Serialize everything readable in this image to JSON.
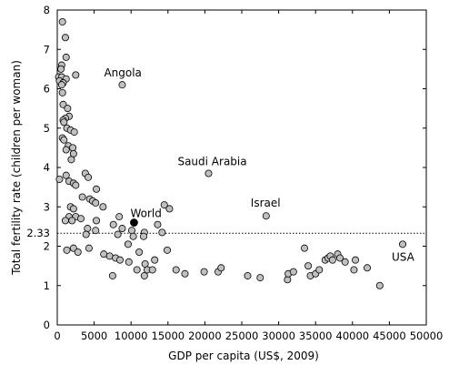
{
  "chart_data": {
    "type": "scatter",
    "xlabel": "GDP per capita (US$, 2009)",
    "ylabel": "Total fertility rate (children per woman)",
    "xlim": [
      0,
      50000
    ],
    "ylim": [
      0,
      8
    ],
    "x_ticks": [
      "0",
      "5000",
      "10000",
      "15000",
      "20000",
      "25000",
      "30000",
      "35000",
      "40000",
      "45000",
      "50000"
    ],
    "y_ticks": [
      "0",
      "1",
      "2",
      "3",
      "4",
      "5",
      "6",
      "7",
      "8"
    ],
    "grid": false,
    "colors": {
      "point": "#c0c0c0",
      "world_point": "#000000",
      "reference_line": "#000000"
    },
    "reference_line": {
      "y": 2.33,
      "label": "2.33",
      "style": "dotted"
    },
    "annotations": [
      {
        "label": "Angola",
        "x": 8800,
        "y": 6.1
      },
      {
        "label": "Saudi Arabia",
        "x": 20500,
        "y": 3.85
      },
      {
        "label": "Israel",
        "x": 28300,
        "y": 2.77
      },
      {
        "label": "USA",
        "x": 46800,
        "y": 2.05
      },
      {
        "label": "World",
        "x": 10400,
        "y": 2.6
      }
    ],
    "world_point": {
      "x": 10400,
      "y": 2.6
    },
    "series": [
      {
        "values": [
          [
            700,
            7.7
          ],
          [
            1100,
            7.3
          ],
          [
            1200,
            6.8
          ],
          [
            600,
            6.6
          ],
          [
            500,
            6.5
          ],
          [
            200,
            6.3
          ],
          [
            600,
            6.3
          ],
          [
            2500,
            6.35
          ],
          [
            1200,
            6.25
          ],
          [
            300,
            6.2
          ],
          [
            800,
            6.15
          ],
          [
            600,
            6.1
          ],
          [
            700,
            5.9
          ],
          [
            800,
            5.6
          ],
          [
            1400,
            5.5
          ],
          [
            1600,
            5.3
          ],
          [
            1100,
            5.25
          ],
          [
            800,
            5.2
          ],
          [
            900,
            5.15
          ],
          [
            1300,
            5.0
          ],
          [
            1800,
            4.95
          ],
          [
            2300,
            4.9
          ],
          [
            700,
            4.75
          ],
          [
            900,
            4.7
          ],
          [
            1500,
            4.55
          ],
          [
            2100,
            4.5
          ],
          [
            1200,
            4.45
          ],
          [
            2200,
            4.35
          ],
          [
            1900,
            4.2
          ],
          [
            3800,
            3.85
          ],
          [
            4200,
            3.75
          ],
          [
            1200,
            3.8
          ],
          [
            300,
            3.7
          ],
          [
            1600,
            3.65
          ],
          [
            2200,
            3.6
          ],
          [
            2500,
            3.55
          ],
          [
            5300,
            3.45
          ],
          [
            3400,
            3.25
          ],
          [
            4400,
            3.2
          ],
          [
            4800,
            3.15
          ],
          [
            5200,
            3.1
          ],
          [
            1800,
            3.0
          ],
          [
            2200,
            2.95
          ],
          [
            6200,
            3.0
          ],
          [
            14500,
            3.05
          ],
          [
            15200,
            2.95
          ],
          [
            1600,
            2.75
          ],
          [
            2500,
            2.75
          ],
          [
            1100,
            2.65
          ],
          [
            2000,
            2.65
          ],
          [
            3200,
            2.7
          ],
          [
            5300,
            2.65
          ],
          [
            7600,
            2.55
          ],
          [
            8400,
            2.75
          ],
          [
            13600,
            2.55
          ],
          [
            8800,
            2.45
          ],
          [
            4100,
            2.45
          ],
          [
            5200,
            2.4
          ],
          [
            10100,
            2.4
          ],
          [
            14200,
            2.35
          ],
          [
            11800,
            2.35
          ],
          [
            3900,
            2.3
          ],
          [
            8200,
            2.3
          ],
          [
            10300,
            2.25
          ],
          [
            11700,
            2.25
          ],
          [
            9600,
            2.05
          ],
          [
            2200,
            1.95
          ],
          [
            4300,
            1.95
          ],
          [
            1300,
            1.9
          ],
          [
            2800,
            1.85
          ],
          [
            11100,
            1.85
          ],
          [
            14900,
            1.9
          ],
          [
            6300,
            1.8
          ],
          [
            7100,
            1.75
          ],
          [
            7900,
            1.7
          ],
          [
            8500,
            1.65
          ],
          [
            9700,
            1.6
          ],
          [
            11900,
            1.55
          ],
          [
            13200,
            1.65
          ],
          [
            10800,
            1.4
          ],
          [
            12200,
            1.4
          ],
          [
            12900,
            1.4
          ],
          [
            16100,
            1.4
          ],
          [
            7500,
            1.25
          ],
          [
            11800,
            1.25
          ],
          [
            17300,
            1.3
          ],
          [
            19900,
            1.35
          ],
          [
            21800,
            1.35
          ],
          [
            22200,
            1.45
          ],
          [
            25800,
            1.25
          ],
          [
            27500,
            1.2
          ],
          [
            31200,
            1.15
          ],
          [
            31300,
            1.3
          ],
          [
            32000,
            1.35
          ],
          [
            33500,
            1.95
          ],
          [
            34000,
            1.5
          ],
          [
            34300,
            1.25
          ],
          [
            35000,
            1.3
          ],
          [
            35500,
            1.4
          ],
          [
            36300,
            1.65
          ],
          [
            36700,
            1.7
          ],
          [
            37000,
            1.75
          ],
          [
            37300,
            1.65
          ],
          [
            38000,
            1.8
          ],
          [
            38300,
            1.7
          ],
          [
            39000,
            1.6
          ],
          [
            40400,
            1.65
          ],
          [
            40200,
            1.4
          ],
          [
            42000,
            1.45
          ],
          [
            43700,
            1.0
          ],
          [
            46800,
            2.05
          ],
          [
            8800,
            6.1
          ],
          [
            20500,
            3.85
          ],
          [
            28300,
            2.77
          ]
        ]
      }
    ]
  }
}
